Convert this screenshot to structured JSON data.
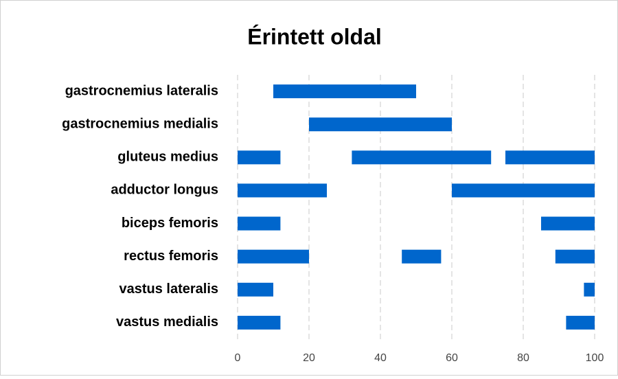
{
  "chart_data": {
    "type": "range-bar",
    "title": "Érintett oldal",
    "categories": [
      "gastrocnemius lateralis",
      "gastrocnemius medialis",
      "gluteus medius",
      "adductor longus",
      "biceps femoris",
      "rectus femoris",
      "vastus lateralis",
      "vastus medialis"
    ],
    "ranges": [
      [
        [
          10,
          50
        ]
      ],
      [
        [
          20,
          60
        ]
      ],
      [
        [
          0,
          12
        ],
        [
          32,
          71
        ],
        [
          75,
          100
        ]
      ],
      [
        [
          0,
          25
        ],
        [
          60,
          100
        ]
      ],
      [
        [
          0,
          12
        ],
        [
          85,
          100
        ]
      ],
      [
        [
          0,
          20
        ],
        [
          46,
          57
        ],
        [
          89,
          100
        ]
      ],
      [
        [
          0,
          10
        ],
        [
          97,
          100
        ]
      ],
      [
        [
          0,
          12
        ],
        [
          92,
          100
        ]
      ]
    ],
    "color": "#0066cc",
    "xlim": [
      0,
      100
    ],
    "xticks": [
      0,
      20,
      40,
      60,
      80,
      100
    ],
    "grid": true
  }
}
